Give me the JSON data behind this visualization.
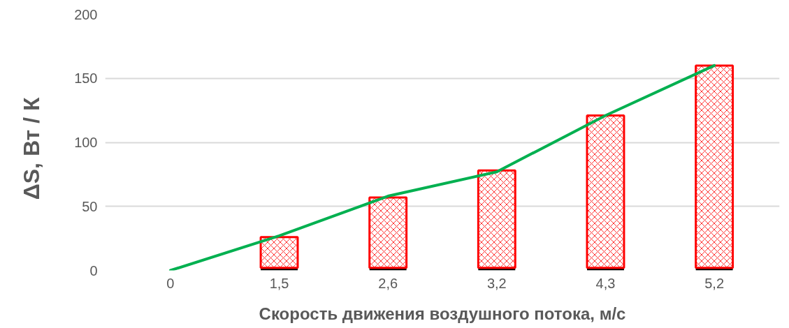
{
  "chart_data": {
    "type": "bar",
    "stacked": true,
    "xlabel": "Скорость движения воздушного потока, м/с",
    "ylabel": "ΔS,   Вт / К",
    "categories": [
      "0",
      "1,5",
      "2,6",
      "3,2",
      "4,3",
      "5,2"
    ],
    "series": [
      {
        "color": "#000000",
        "values": [
          null,
          2,
          2,
          2,
          2,
          2
        ]
      },
      {
        "color": "#ff0000",
        "values": [
          null,
          24,
          55,
          76,
          119,
          158
        ]
      },
      {
        "type": "line",
        "color": "#00b050",
        "values": [
          0,
          27,
          58,
          77,
          121,
          160
        ]
      }
    ],
    "ylim": [
      0,
      200
    ],
    "yticks": [
      0,
      50,
      100,
      150,
      200
    ],
    "grid": "y"
  }
}
